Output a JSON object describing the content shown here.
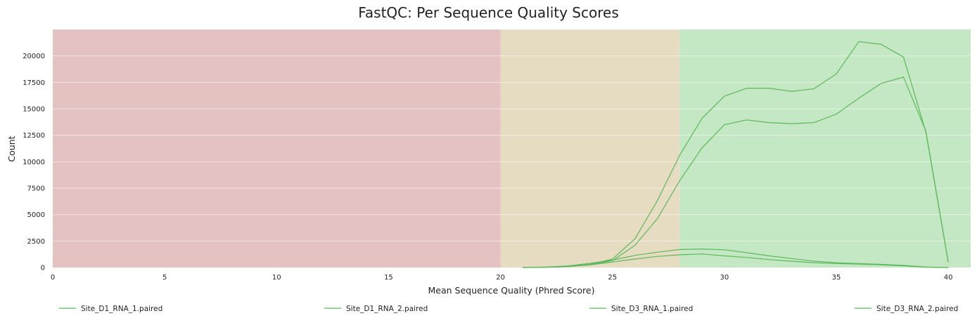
{
  "chart_data": {
    "type": "line",
    "title": "FastQC: Per Sequence Quality Scores",
    "xlabel": "Mean Sequence Quality (Phred Score)",
    "ylabel": "Count",
    "xlim": [
      0,
      41
    ],
    "ylim": [
      0,
      22500
    ],
    "xticks": [
      0,
      5,
      10,
      15,
      20,
      25,
      30,
      35,
      40
    ],
    "yticks": [
      0,
      2500,
      5000,
      7500,
      10000,
      12500,
      15000,
      17500,
      20000
    ],
    "grid": true,
    "legend_position": "bottom",
    "bands": [
      {
        "from": 0,
        "to": 20,
        "color": "#e4c2c2"
      },
      {
        "from": 20,
        "to": 28,
        "color": "#e6dcc2"
      },
      {
        "from": 28,
        "to": 41,
        "color": "#c4e7c4"
      }
    ],
    "line_color": "#5cb85c",
    "x": [
      21,
      22,
      23,
      24,
      25,
      26,
      27,
      28,
      29,
      30,
      31,
      32,
      33,
      34,
      35,
      36,
      37,
      38,
      39,
      40
    ],
    "series": [
      {
        "name": "Site_D1_RNA_1.paired",
        "values": [
          0,
          30,
          100,
          300,
          800,
          2700,
          6300,
          10600,
          14100,
          16200,
          16950,
          16950,
          16650,
          16900,
          18300,
          21350,
          21100,
          19900,
          12800,
          500
        ]
      },
      {
        "name": "Site_D1_RNA_2.paired",
        "values": [
          0,
          25,
          80,
          250,
          650,
          2100,
          4600,
          8200,
          11300,
          13500,
          13950,
          13700,
          13600,
          13700,
          14500,
          16000,
          17400,
          18000,
          12900,
          500
        ]
      },
      {
        "name": "Site_D3_RNA_1.paired",
        "values": [
          0,
          40,
          150,
          400,
          700,
          1150,
          1450,
          1700,
          1750,
          1680,
          1400,
          1100,
          850,
          600,
          450,
          380,
          300,
          200,
          50,
          0
        ]
      },
      {
        "name": "Site_D3_RNA_2.paired",
        "values": [
          0,
          30,
          100,
          260,
          520,
          800,
          1050,
          1200,
          1280,
          1100,
          950,
          750,
          600,
          450,
          380,
          320,
          250,
          150,
          30,
          0
        ]
      }
    ]
  }
}
